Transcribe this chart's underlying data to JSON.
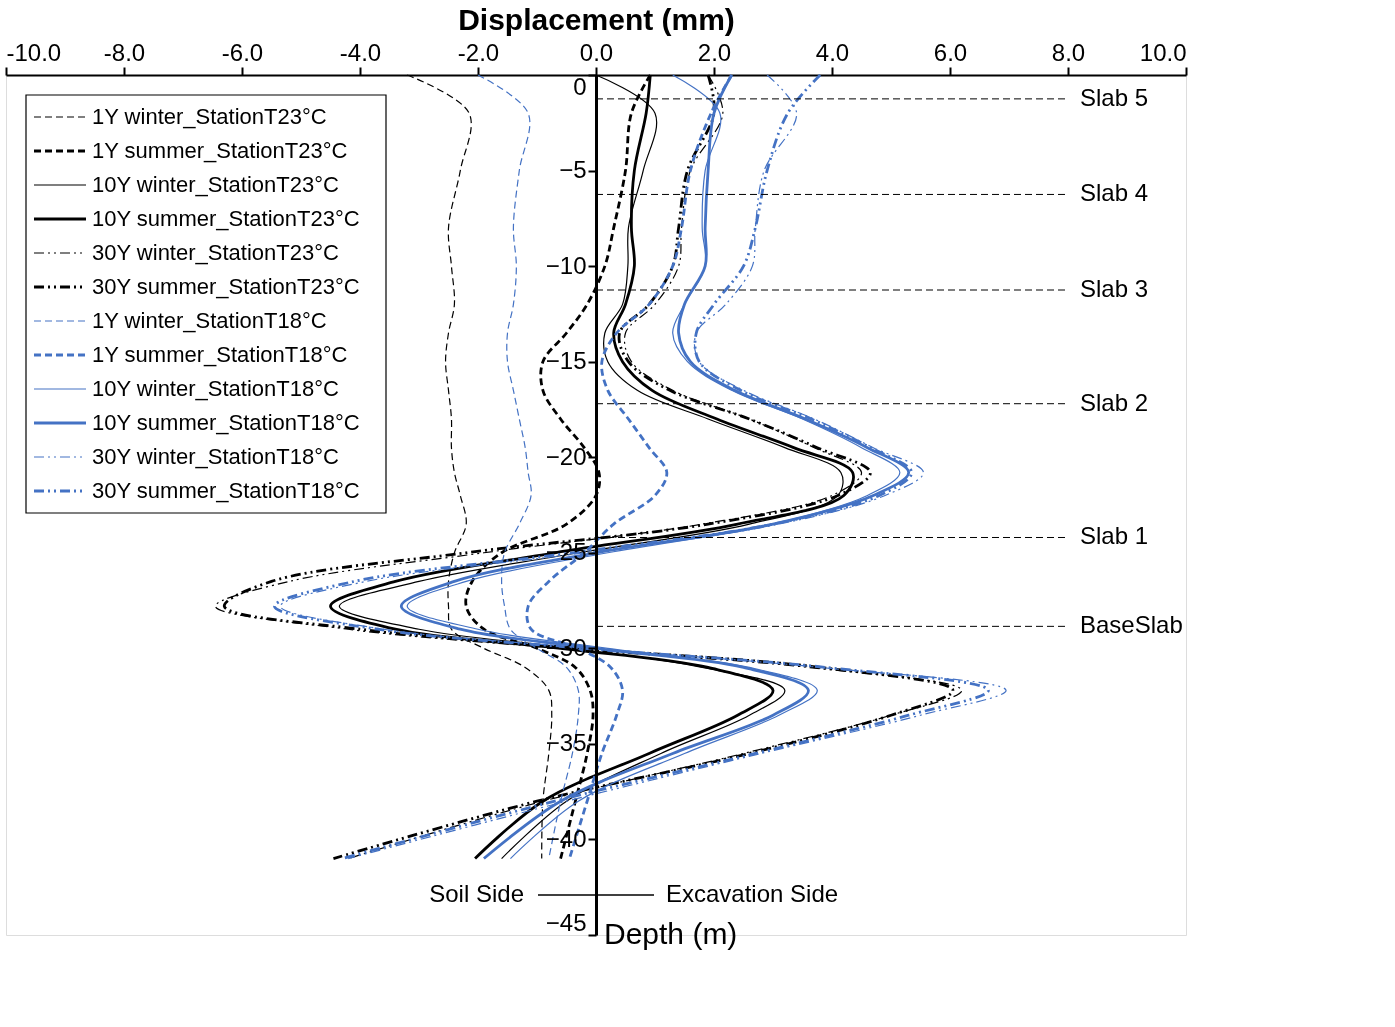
{
  "chart_data": {
    "type": "line",
    "xlabel": "Displacement (mm)",
    "ylabel": "Depth (m)",
    "xlim": [
      -10,
      10
    ],
    "ylim": [
      -45,
      0
    ],
    "xticks": [
      {
        "value": -10,
        "label": "-10.0"
      },
      {
        "value": -8,
        "label": "-8.0"
      },
      {
        "value": -6,
        "label": "-6.0"
      },
      {
        "value": -4,
        "label": "-4.0"
      },
      {
        "value": -2,
        "label": "-2.0"
      },
      {
        "value": 0,
        "label": "0.0"
      },
      {
        "value": 2,
        "label": "2.0"
      },
      {
        "value": 4,
        "label": "4.0"
      },
      {
        "value": 6,
        "label": "6.0"
      },
      {
        "value": 8,
        "label": "8.0"
      },
      {
        "value": 10,
        "label": "10.0"
      }
    ],
    "yticks": [
      0,
      -5,
      -10,
      -15,
      -20,
      -25,
      -30,
      -35,
      -40,
      -45
    ],
    "grid": false,
    "legend": "top left",
    "marker": "none",
    "series": [
      {
        "name": "1Y winter_StationT23°C",
        "color": "#000000",
        "line_style": "dashed",
        "x": [
          -3.2,
          -2.15,
          -2.3,
          -2.5,
          -2.45,
          -2.4,
          -2.5,
          -2.55,
          -2.5,
          -2.45,
          -2.45,
          -2.4,
          -2.3,
          -2.2,
          -2.4,
          -2.5,
          -2.5,
          -2.45,
          -1.9,
          -1.2,
          -0.8,
          -0.75,
          -0.8,
          -0.9,
          -0.92
        ],
        "values": [
          0,
          -2,
          -5,
          -8,
          -10,
          -12,
          -13.5,
          -15,
          -16.5,
          -18,
          -19.5,
          -20.8,
          -22,
          -23.5,
          -25,
          -26.5,
          -27.8,
          -29,
          -30,
          -31,
          -32.2,
          -33.5,
          -35.5,
          -38,
          -41
        ]
      },
      {
        "name": "1Y summer_StationT23°C",
        "color": "#000000",
        "line_style": "dashed",
        "x": [
          0.92,
          0.6,
          0.5,
          0.3,
          0.15,
          -0.15,
          -0.5,
          -0.9,
          -0.9,
          -0.6,
          -0.2,
          0.05,
          0.0,
          -0.5,
          -1.6,
          -2.1,
          -2.2,
          -1.9,
          -1.0,
          -0.35,
          -0.1,
          -0.05,
          -0.15,
          -0.35,
          -0.6
        ],
        "values": [
          0,
          -2,
          -5,
          -8,
          -10,
          -12,
          -13.5,
          -15,
          -16.5,
          -18,
          -19.5,
          -20.8,
          -22,
          -23.5,
          -25,
          -26.5,
          -27.8,
          -29,
          -30,
          -31,
          -32.2,
          -33.5,
          -35.5,
          -38,
          -41
        ]
      },
      {
        "name": "10Y winter_StationT23°C",
        "color": "#000000",
        "line_style": "solid",
        "x": [
          0,
          1.0,
          0.8,
          0.55,
          0.54,
          0.45,
          0.15,
          0.2,
          0.7,
          1.9,
          3.2,
          4.15,
          4.1,
          2.6,
          -0.3,
          -3.0,
          -4.35,
          -3.0,
          -0.4,
          1.8,
          3.2,
          2.6,
          1.1,
          -0.5,
          -1.6
        ],
        "values": [
          0,
          -2,
          -5,
          -8,
          -10,
          -12,
          -13.5,
          -15,
          -16.5,
          -18,
          -19.5,
          -20.8,
          -22,
          -23.5,
          -25,
          -26.5,
          -27.8,
          -29,
          -30,
          -31,
          -32.2,
          -33.5,
          -35.5,
          -38,
          -41
        ]
      },
      {
        "name": "10Y summer_StationT23°C",
        "color": "#000000",
        "line_style": "solid",
        "x": [
          0.92,
          0.85,
          0.65,
          0.6,
          0.65,
          0.5,
          0.3,
          0.45,
          0.95,
          2.05,
          3.35,
          4.35,
          4.2,
          2.4,
          -0.7,
          -3.4,
          -4.5,
          -3.4,
          -0.6,
          1.9,
          3.0,
          2.4,
          0.9,
          -0.9,
          -2.05
        ],
        "values": [
          0,
          -2,
          -5,
          -8,
          -10,
          -12,
          -13.5,
          -15,
          -16.5,
          -18,
          -19.5,
          -20.8,
          -22,
          -23.5,
          -25,
          -26.5,
          -27.8,
          -29,
          -30,
          -31,
          -32.2,
          -33.5,
          -35.5,
          -38,
          -41
        ]
      },
      {
        "name": "30Y winter_StationT23°C",
        "color": "#000000",
        "line_style": "dashdot",
        "x": [
          1.9,
          2.15,
          1.6,
          1.45,
          1.4,
          1.0,
          0.5,
          0.6,
          1.3,
          2.6,
          3.7,
          4.5,
          4.0,
          1.8,
          -1.9,
          -5.2,
          -6.45,
          -4.2,
          -0.6,
          3.6,
          6.2,
          5.0,
          2.5,
          -0.9,
          -4.2
        ],
        "values": [
          0,
          -2,
          -5,
          -8,
          -10,
          -12,
          -13.5,
          -15,
          -16.5,
          -18,
          -19.5,
          -20.8,
          -22,
          -23.5,
          -25,
          -26.5,
          -27.8,
          -29,
          -30,
          -31,
          -32.2,
          -33.5,
          -35.5,
          -38,
          -41
        ]
      },
      {
        "name": "30Y summer_StationT23°C",
        "color": "#000000",
        "line_style": "dashdot",
        "x": [
          1.9,
          2.0,
          1.55,
          1.4,
          1.3,
          0.9,
          0.4,
          0.55,
          1.25,
          2.6,
          3.75,
          4.65,
          4.1,
          1.9,
          -2.2,
          -5.5,
          -6.3,
          -4.0,
          -0.3,
          3.8,
          6.05,
          5.0,
          2.6,
          -1.0,
          -4.45
        ],
        "values": [
          0,
          -2,
          -5,
          -8,
          -10,
          -12,
          -13.5,
          -15,
          -16.5,
          -18,
          -19.5,
          -20.8,
          -22,
          -23.5,
          -25,
          -26.5,
          -27.8,
          -29,
          -30,
          -31,
          -32.2,
          -33.5,
          -35.5,
          -38,
          -41
        ]
      },
      {
        "name": "1Y winter_StationT18°C",
        "color": "#4472c4",
        "line_style": "dashed",
        "x": [
          -2.0,
          -1.15,
          -1.3,
          -1.4,
          -1.35,
          -1.4,
          -1.5,
          -1.5,
          -1.4,
          -1.3,
          -1.2,
          -1.15,
          -1.1,
          -1.3,
          -1.55,
          -1.6,
          -1.55,
          -1.45,
          -1.0,
          -0.5,
          -0.3,
          -0.3,
          -0.4,
          -0.6,
          -0.8
        ],
        "values": [
          0,
          -2,
          -5,
          -8,
          -10,
          -12,
          -13.5,
          -15,
          -16.5,
          -18,
          -19.5,
          -20.8,
          -22,
          -23.5,
          -25,
          -26.5,
          -27.8,
          -29,
          -30,
          -31,
          -32.2,
          -33.5,
          -35.5,
          -38,
          -41
        ]
      },
      {
        "name": "1Y summer_StationT18°C",
        "color": "#4472c4",
        "line_style": "dashed",
        "x": [
          2.3,
          1.95,
          1.6,
          1.45,
          1.3,
          0.9,
          0.35,
          0.1,
          0.2,
          0.55,
          0.9,
          1.2,
          1.0,
          0.3,
          -0.2,
          -0.8,
          -1.15,
          -1.1,
          -0.3,
          0.25,
          0.45,
          0.35,
          0.1,
          -0.15,
          -0.45
        ],
        "values": [
          0,
          -2,
          -5,
          -8,
          -10,
          -12,
          -13.5,
          -15,
          -16.5,
          -18,
          -19.5,
          -20.8,
          -22,
          -23.5,
          -25,
          -26.5,
          -27.8,
          -29,
          -30,
          -31,
          -32.2,
          -33.5,
          -35.5,
          -38,
          -41
        ]
      },
      {
        "name": "10Y winter_StationT18°C",
        "color": "#4472c4",
        "line_style": "solid",
        "x": [
          1.3,
          2.1,
          1.85,
          1.8,
          1.85,
          1.5,
          1.3,
          1.55,
          2.3,
          3.5,
          4.5,
          5.15,
          4.6,
          3.0,
          0.2,
          -2.2,
          -3.2,
          -2.0,
          0.2,
          2.6,
          3.75,
          3.1,
          1.5,
          -0.3,
          -1.45
        ],
        "values": [
          0,
          -2,
          -5,
          -8,
          -10,
          -12,
          -13.5,
          -15,
          -16.5,
          -18,
          -19.5,
          -20.8,
          -22,
          -23.5,
          -25,
          -26.5,
          -27.8,
          -29,
          -30,
          -31,
          -32.2,
          -33.5,
          -35.5,
          -38,
          -41
        ]
      },
      {
        "name": "10Y summer_StationT18°C",
        "color": "#4472c4",
        "line_style": "solid",
        "x": [
          2.3,
          2.0,
          1.9,
          1.85,
          1.85,
          1.5,
          1.4,
          1.6,
          2.35,
          3.55,
          4.6,
          5.3,
          4.7,
          3.0,
          0.0,
          -2.4,
          -3.3,
          -2.3,
          0.0,
          2.5,
          3.6,
          3.0,
          1.3,
          -0.6,
          -1.9
        ],
        "values": [
          0,
          -2,
          -5,
          -8,
          -10,
          -12,
          -13.5,
          -15,
          -16.5,
          -18,
          -19.5,
          -20.8,
          -22,
          -23.5,
          -25,
          -26.5,
          -27.8,
          -29,
          -30,
          -31,
          -32.2,
          -33.5,
          -35.5,
          -38,
          -41
        ]
      },
      {
        "name": "30Y winter_StationT18°C",
        "color": "#4472c4",
        "line_style": "dashdot",
        "x": [
          2.9,
          3.4,
          2.85,
          2.7,
          2.65,
          2.2,
          1.7,
          1.75,
          2.5,
          3.7,
          4.7,
          5.55,
          4.9,
          3.1,
          -0.2,
          -3.9,
          -5.35,
          -3.6,
          -0.1,
          3.8,
          6.95,
          5.5,
          2.8,
          -0.5,
          -4.2
        ],
        "values": [
          0,
          -2,
          -5,
          -8,
          -10,
          -12,
          -13.5,
          -15,
          -16.5,
          -18,
          -19.5,
          -20.8,
          -22,
          -23.5,
          -25,
          -26.5,
          -27.8,
          -29,
          -30,
          -31,
          -32.2,
          -33.5,
          -35.5,
          -38,
          -41
        ]
      },
      {
        "name": "30Y summer_StationT18°C",
        "color": "#4472c4",
        "line_style": "dashdot",
        "x": [
          3.8,
          3.25,
          2.9,
          2.7,
          2.5,
          2.0,
          1.7,
          1.75,
          2.45,
          3.65,
          4.65,
          5.35,
          4.8,
          3.0,
          -0.4,
          -4.1,
          -5.45,
          -3.7,
          -0.2,
          3.9,
          6.65,
          5.3,
          2.7,
          -0.7,
          -4.3
        ],
        "values": [
          0,
          -2,
          -5,
          -8,
          -10,
          -12,
          -13.5,
          -15,
          -16.5,
          -18,
          -19.5,
          -20.8,
          -22,
          -23.5,
          -25,
          -26.5,
          -27.8,
          -29,
          -30,
          -31,
          -32.2,
          -33.5,
          -35.5,
          -38,
          -41
        ]
      }
    ],
    "ref_lines": [
      {
        "axis": "y",
        "value": -1.25,
        "label": "Slab 5",
        "line_style": "dashed"
      },
      {
        "axis": "y",
        "value": -6.25,
        "label": "Slab 4",
        "line_style": "dashed"
      },
      {
        "axis": "y",
        "value": -11.25,
        "label": "Slab 3",
        "line_style": "dashed"
      },
      {
        "axis": "y",
        "value": -17.2,
        "label": "Slab 2",
        "line_style": "dashed"
      },
      {
        "axis": "y",
        "value": -24.2,
        "label": "Slab 1",
        "line_style": "dashed"
      },
      {
        "axis": "y",
        "value": -28.85,
        "label": "BaseSlab",
        "line_style": "dashed"
      }
    ],
    "annotations": [
      "Soil Side",
      "Excavation Side"
    ]
  }
}
